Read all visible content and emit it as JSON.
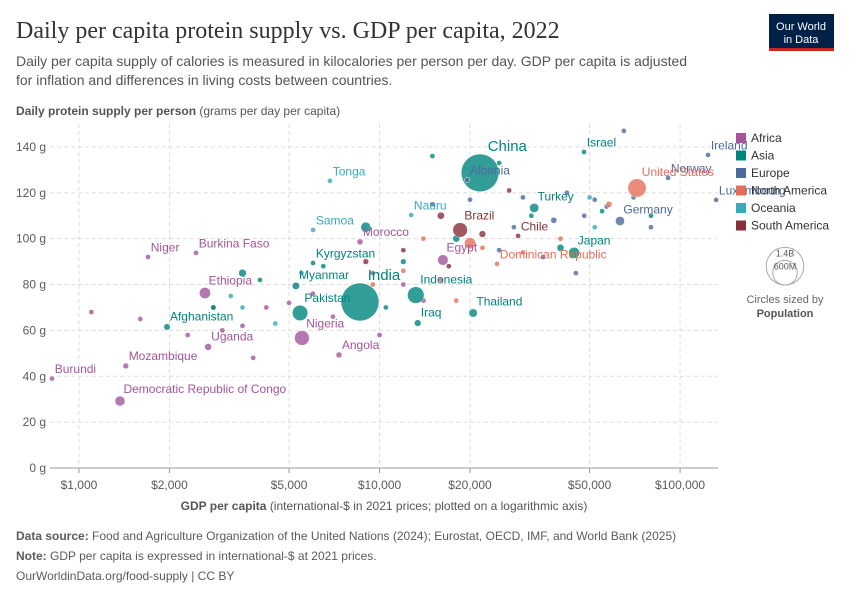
{
  "chart_data": {
    "type": "scatter",
    "title": "Daily per capita protein supply vs. GDP per capita, 2022",
    "subtitle": [
      "Daily per capita supply of calories is measured in kilocalories per person per day. GDP per capita is adjusted",
      "for inflation and differences in living costs between countries."
    ],
    "y_label": "Daily protein supply per person",
    "y_label_note": "(grams per day per capita)",
    "x_label": "GDP per capita",
    "x_label_note": "(international-$ in 2021 prices; plotted on a logarithmic axis)",
    "log_x": true,
    "grid": true,
    "xlim": [
      801,
      133700
    ],
    "ylim": [
      0,
      150
    ],
    "xticks": [
      {
        "value": 1000,
        "label": "$1,000"
      },
      {
        "value": 2000,
        "label": "$2,000"
      },
      {
        "value": 5000,
        "label": "$5,000"
      },
      {
        "value": 10000,
        "label": "$10,000"
      },
      {
        "value": 20000,
        "label": "$20,000"
      },
      {
        "value": 50000,
        "label": "$50,000"
      },
      {
        "value": 100000,
        "label": "$100,000"
      }
    ],
    "yticks": [
      {
        "value": 0,
        "label": "0 g"
      },
      {
        "value": 20,
        "label": "20 g"
      },
      {
        "value": 40,
        "label": "40 g"
      },
      {
        "value": 60,
        "label": "60 g"
      },
      {
        "value": 80,
        "label": "80 g"
      },
      {
        "value": 100,
        "label": "100 g"
      },
      {
        "value": 120,
        "label": "120 g"
      },
      {
        "value": 140,
        "label": "140 g"
      }
    ],
    "legend_position": "right",
    "size_legend_title": "Circles sized by",
    "size_variable": "Population",
    "size_legend": [
      {
        "value": 1400000000,
        "label": "1.4B"
      },
      {
        "value": 600000000,
        "label": "600M"
      }
    ],
    "series": [
      {
        "name": "Africa",
        "color": "#a2559c",
        "x": [
          1697,
          2450,
          2625,
          2690,
          1432,
          813,
          1369,
          5520,
          7330,
          8610,
          16250,
          1100,
          1600,
          2300,
          3000,
          3500,
          4200,
          5000,
          7000,
          10000,
          12000,
          3800,
          2800,
          6000,
          14000,
          9500
        ],
        "values": [
          92,
          93.8,
          76.3,
          52.8,
          44.5,
          39,
          29.2,
          56.7,
          49.3,
          98.6,
          90.7,
          68,
          65,
          58,
          60,
          62,
          70,
          72,
          66,
          58,
          80,
          48,
          70,
          76,
          73,
          85
        ],
        "sizes": [
          26000000,
          23000000,
          126000000,
          48000000,
          33000000,
          13000000,
          100000000,
          220000000,
          36000000,
          37000000,
          111000000,
          6000000,
          17000000,
          9000000,
          14000000,
          20000000,
          8000000,
          12000000,
          5000000,
          3000000,
          10000000,
          6000000,
          19000000,
          27000000,
          12000000,
          4000000
        ],
        "labels": [
          "Niger",
          "Burkina Faso",
          "Ethiopia",
          "Uganda",
          "Mozambique",
          "Burundi",
          "Democratic Republic of Congo",
          "Nigeria",
          "Angola",
          "Morocco",
          "Egypt",
          null,
          null,
          null,
          null,
          null,
          null,
          null,
          null,
          null,
          null,
          null,
          null,
          null,
          null,
          null
        ]
      },
      {
        "name": "Asia",
        "color": "#00847e",
        "x": [
          21600,
          8610,
          13200,
          5440,
          1963,
          5270,
          6010,
          20480,
          13400,
          32700,
          44400,
          47900,
          2800,
          4000,
          6500,
          9000,
          12000,
          15000,
          25000,
          32000,
          40000,
          55000,
          80000,
          3500,
          10500,
          18000
        ],
        "values": [
          128.7,
          72.4,
          75.4,
          67.6,
          61.5,
          79.4,
          89.4,
          67.6,
          63.2,
          113.4,
          93.8,
          137.8,
          70,
          82,
          88,
          105,
          90,
          136,
          133,
          110,
          96,
          112,
          110,
          85,
          70,
          100
        ],
        "sizes": [
          1410000000,
          1430000000,
          276000000,
          240000000,
          41000000,
          54000000,
          7000000,
          71000000,
          45000000,
          85000000,
          124000000,
          9700000,
          30000000,
          20000000,
          8000000,
          100000000,
          33000000,
          4000000,
          5000000,
          10000000,
          51000000,
          20000000,
          6000000,
          60000000,
          15000000,
          50000000
        ],
        "labels": [
          "China",
          "India",
          "Indonesia",
          "Pakistan",
          "Afghanistan",
          "Myanmar",
          "Kyrgyzstan",
          "Thailand",
          "Iraq",
          "Turkey",
          "Japan",
          "Israel",
          null,
          null,
          null,
          null,
          null,
          null,
          null,
          null,
          null,
          null,
          null,
          null,
          null,
          null
        ]
      },
      {
        "name": "Europe",
        "color": "#4c6a9c",
        "x": [
          19560,
          123900,
          91200,
          131800,
          63100,
          15000,
          20000,
          25000,
          30000,
          38000,
          42000,
          48000,
          52000,
          57000,
          65000,
          70000,
          80000,
          28000,
          35000,
          45000
        ],
        "values": [
          125.6,
          136.5,
          126.5,
          116.9,
          107.7,
          115,
          117,
          95,
          118,
          108,
          120,
          110,
          117,
          114,
          147,
          118,
          105,
          105,
          92,
          85
        ],
        "sizes": [
          2800000,
          5100000,
          5500000,
          650000,
          84000000,
          3000000,
          6000000,
          9000000,
          10000000,
          38000000,
          10000000,
          17000000,
          9000000,
          6000000,
          3000000,
          9000000,
          5000000,
          19000000,
          2000000,
          6000000
        ],
        "labels": [
          "Albania",
          "Ireland",
          "Norway",
          "Luxembourg",
          "Germany",
          null,
          null,
          null,
          null,
          null,
          null,
          null,
          null,
          null,
          null,
          null,
          null,
          null,
          null,
          null
        ]
      },
      {
        "name": "North America",
        "color": "#e56e5a",
        "x": [
          71900,
          24600,
          9500,
          12000,
          16000,
          20000,
          22000,
          30000,
          40000,
          58000,
          14000,
          18000
        ],
        "values": [
          122.1,
          89,
          80,
          86,
          82,
          98,
          96,
          94,
          100,
          115,
          100,
          73
        ],
        "sizes": [
          335000000,
          11000000,
          10000000,
          3000000,
          6000000,
          128000000,
          5000000,
          3000000,
          1000000,
          38000000,
          3000000,
          2800000
        ],
        "labels": [
          "United States",
          "Dominican Republic",
          null,
          null,
          null,
          null,
          null,
          null,
          null,
          null,
          null,
          null
        ]
      },
      {
        "name": "Oceania",
        "color": "#38aaba",
        "x": [
          6840,
          6010,
          12740,
          3500,
          4500,
          5500,
          50000,
          52000,
          3200
        ],
        "values": [
          125.2,
          103.8,
          110.3,
          70,
          63,
          85,
          118,
          105,
          75
        ],
        "sizes": [
          100000,
          200000,
          12000,
          10000000,
          700000,
          900000,
          26000000,
          5100000,
          300000
        ],
        "labels": [
          "Tonga",
          "Samoa",
          "Nauru",
          null,
          null,
          null,
          null,
          null,
          null
        ]
      },
      {
        "name": "South America",
        "color": "#883039",
        "x": [
          18540,
          28900,
          12000,
          16000,
          22000,
          27000,
          9000,
          17000
        ],
        "values": [
          103.8,
          101.2,
          95,
          110,
          102,
          121,
          90,
          88
        ],
        "sizes": [
          216000000,
          19600000,
          12000000,
          52000000,
          46000000,
          3400000,
          34000000,
          7000000
        ],
        "labels": [
          "Brazil",
          "Chile",
          null,
          null,
          null,
          null,
          null,
          null
        ]
      }
    ]
  },
  "logo": [
    "Our World",
    "in Data"
  ],
  "footer": {
    "source_label": "Data source:",
    "source": "Food and Agriculture Organization of the United Nations (2024); Eurostat, OECD, IMF, and World Bank (2025)",
    "note_label": "Note:",
    "note": "GDP per capita is expressed in international-$ at 2021 prices.",
    "link": "OurWorldinData.org/food-supply | CC BY"
  }
}
